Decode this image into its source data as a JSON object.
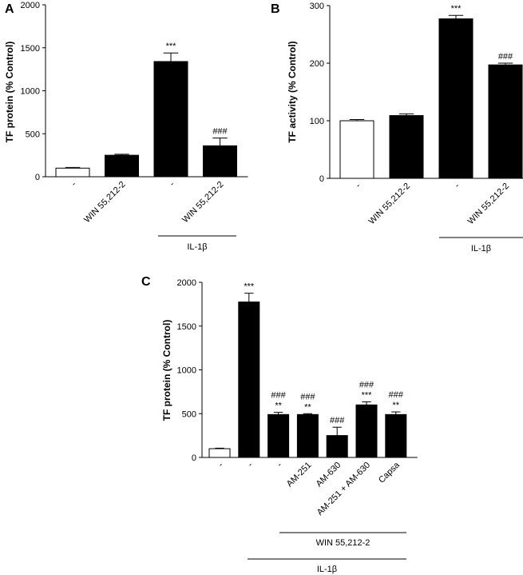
{
  "chart_data": [
    {
      "panel": "A",
      "type": "bar",
      "ylabel": "TF protein (% Control)",
      "ylim": [
        0,
        2000
      ],
      "yticks": [
        0,
        500,
        1000,
        1500,
        2000
      ],
      "categories": [
        "-",
        "WIN 55,212-2",
        "-",
        "WIN 55,212-2"
      ],
      "values": [
        100,
        250,
        1340,
        360
      ],
      "errors": [
        8,
        12,
        100,
        90
      ],
      "fills": [
        "open",
        "filled",
        "filled",
        "filled"
      ],
      "annotations": [
        "",
        "",
        "***",
        "###"
      ],
      "groups": [
        {
          "label": "IL-1β",
          "from": 2,
          "to": 3
        }
      ]
    },
    {
      "panel": "B",
      "type": "bar",
      "ylabel": "TF activity (% Control)",
      "ylim": [
        0,
        300
      ],
      "yticks": [
        0,
        100,
        200,
        300
      ],
      "categories": [
        "-",
        "WIN 55,212-2",
        "-",
        "WIN 55,212-2"
      ],
      "values": [
        100,
        109,
        277,
        197
      ],
      "errors": [
        2,
        3,
        6,
        3
      ],
      "fills": [
        "open",
        "filled",
        "filled",
        "filled"
      ],
      "annotations": [
        "",
        "",
        "***",
        "###"
      ],
      "groups": [
        {
          "label": "IL-1β",
          "from": 2,
          "to": 3
        }
      ]
    },
    {
      "panel": "C",
      "type": "bar",
      "ylabel": "TF protein (% Control)",
      "ylim": [
        0,
        2000
      ],
      "yticks": [
        0,
        500,
        1000,
        1500,
        2000
      ],
      "categories": [
        "-",
        "-",
        "-",
        "AM-251",
        "AM-630",
        "AM-251 + AM-630",
        "Capsa"
      ],
      "values": [
        100,
        1775,
        490,
        490,
        250,
        600,
        490
      ],
      "errors": [
        6,
        100,
        25,
        10,
        95,
        35,
        30
      ],
      "fills": [
        "open",
        "filled",
        "filled",
        "filled",
        "filled",
        "filled",
        "filled"
      ],
      "annotations": [
        "",
        "***",
        "###\n**",
        "###\n**",
        "###",
        "###\n***",
        "###\n**"
      ],
      "groups": [
        {
          "label": "WIN 55,212-2",
          "from": 2,
          "to": 6
        },
        {
          "label": "IL-1β",
          "from": 1,
          "to": 6
        }
      ]
    }
  ]
}
